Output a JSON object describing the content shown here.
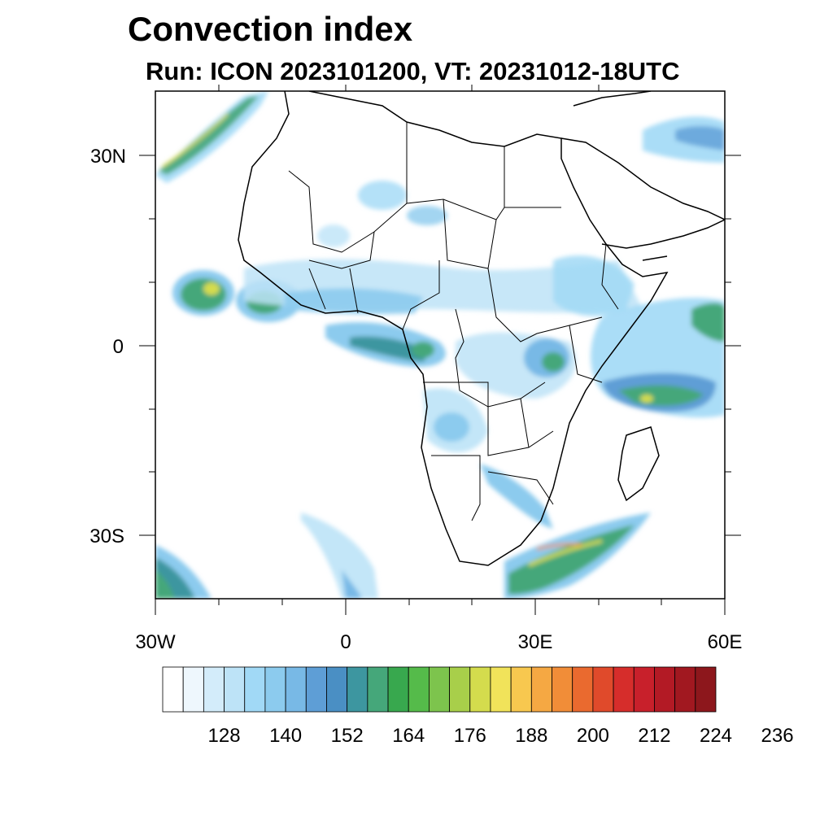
{
  "title": "Convection index",
  "subtitle": "Run: ICON 2023101200,  VT: 20231012-18UTC",
  "map": {
    "region": "Africa and surrounding oceans",
    "lon_range": [
      -30,
      60
    ],
    "lat_range": [
      -40,
      40
    ],
    "x_tick_labels": [
      "30W",
      "0",
      "30E",
      "60E"
    ],
    "y_tick_labels": [
      "30N",
      "0",
      "30S"
    ]
  },
  "colorbar": {
    "colors": [
      "#ffffff",
      "#eef7fd",
      "#d3ecfa",
      "#bde3f7",
      "#a1d9f6",
      "#8ccbee",
      "#78b9e6",
      "#5e9ed6",
      "#4a8fc4",
      "#3d96a0",
      "#45a77a",
      "#38a84e",
      "#55bb4a",
      "#7dc44d",
      "#a8cf4a",
      "#d4dc4d",
      "#f1e35a",
      "#f8c84f",
      "#f5a843",
      "#f18d38",
      "#ea6a2f",
      "#e04a2b",
      "#d62d2b",
      "#c8202b",
      "#b31a25",
      "#a11820",
      "#8d171c"
    ],
    "labels": [
      "128",
      "140",
      "152",
      "164",
      "176",
      "188",
      "200",
      "212",
      "224",
      "236"
    ]
  }
}
